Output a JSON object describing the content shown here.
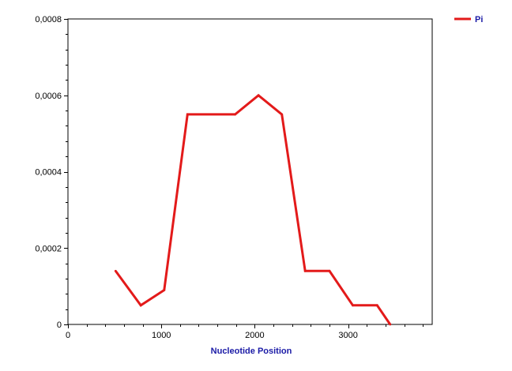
{
  "chart_data": {
    "type": "line",
    "title": "",
    "xlabel": "Nucleotide Position",
    "ylabel": "",
    "xlim": [
      0,
      3900
    ],
    "ylim": [
      0,
      0.0008
    ],
    "x_ticks": [
      0,
      1000,
      2000,
      3000
    ],
    "x_tick_labels": [
      "0",
      "1000",
      "2000",
      "3000"
    ],
    "y_ticks": [
      0,
      0.0002,
      0.0004,
      0.0006,
      0.0008
    ],
    "y_tick_labels": [
      "0",
      "0,0002",
      "0,0004",
      "0,0006",
      "0,0008"
    ],
    "grid": false,
    "legend_position": "top-right",
    "series": [
      {
        "name": "Pi",
        "color": "#e31a1a",
        "x": [
          510,
          780,
          1030,
          1280,
          1790,
          2040,
          2290,
          2540,
          2800,
          3050,
          3310,
          3450
        ],
        "y": [
          0.00014,
          5e-05,
          9e-05,
          0.00055,
          0.00055,
          0.0006,
          0.00055,
          0.00014,
          0.00014,
          5e-05,
          5e-05,
          0.0
        ]
      }
    ]
  }
}
